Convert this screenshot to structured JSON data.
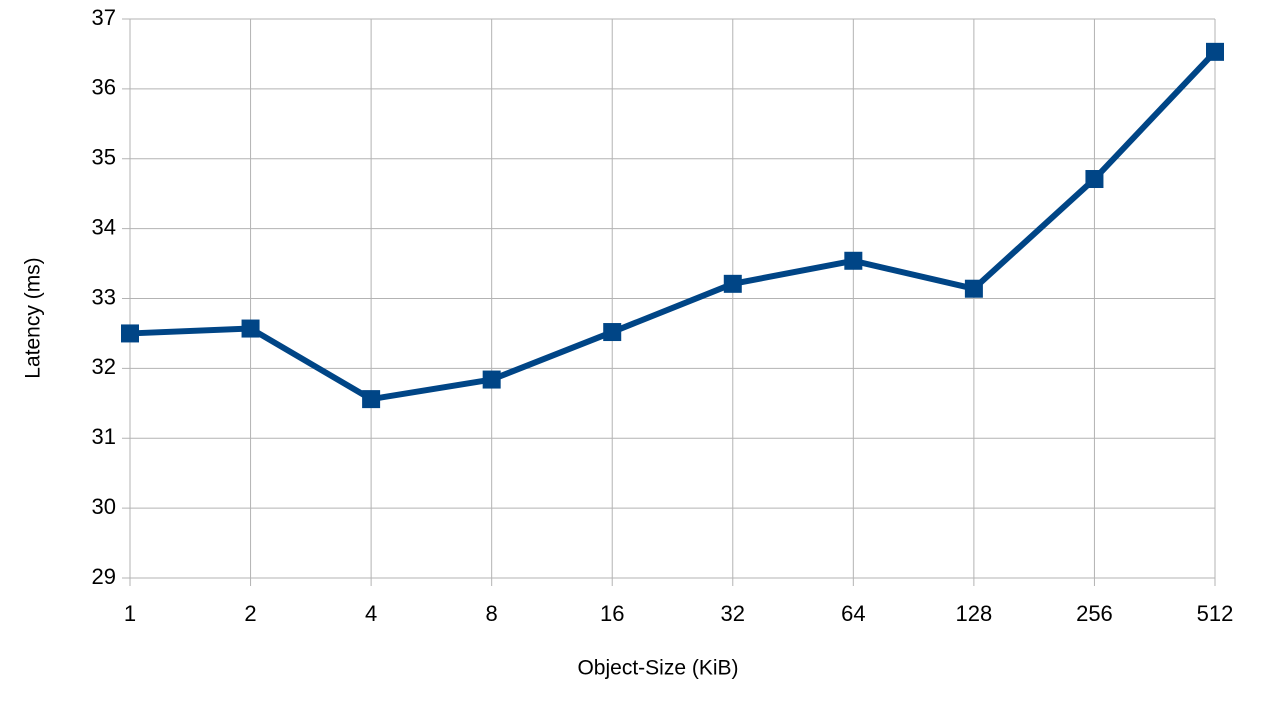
{
  "chart_data": {
    "type": "line",
    "x_label": "Object-Size (KiB)",
    "y_label": "Latency (ms)",
    "x": [
      1,
      2,
      4,
      8,
      16,
      32,
      64,
      128,
      256,
      512
    ],
    "values": [
      32.5,
      32.57,
      31.56,
      31.84,
      32.52,
      33.21,
      33.54,
      33.14,
      34.71,
      36.53
    ],
    "color": "#004586",
    "xscale": "log",
    "xlim": [
      1,
      512
    ],
    "xticks": [
      1,
      2,
      4,
      8,
      16,
      32,
      64,
      128,
      256,
      512
    ],
    "ylim": [
      29,
      37
    ],
    "yticks": [
      29,
      30,
      31,
      32,
      33,
      34,
      35,
      36,
      37
    ],
    "grid": true
  }
}
